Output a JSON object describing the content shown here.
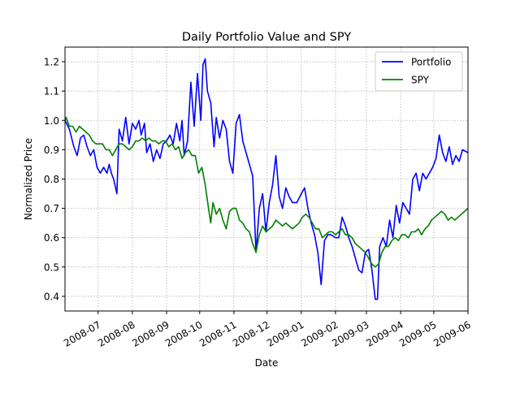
{
  "chart_data": {
    "type": "line",
    "title": "Daily Portfolio Value and SPY",
    "xlabel": "Date",
    "ylabel": "Normalized Price",
    "xlim": [
      "2008-06-01",
      "2009-06-01"
    ],
    "ylim": [
      0.35,
      1.25
    ],
    "grid": true,
    "legend_position": "top-right",
    "x_ticks": [
      "2008-07",
      "2008-08",
      "2008-09",
      "2008-10",
      "2008-11",
      "2008-12",
      "2009-01",
      "2009-02",
      "2009-03",
      "2009-04",
      "2009-05",
      "2009-06"
    ],
    "y_ticks": [
      "0.4",
      "0.5",
      "0.6",
      "0.7",
      "0.8",
      "0.9",
      "1.0",
      "1.1",
      "1.2"
    ],
    "series": [
      {
        "name": "Portfolio",
        "color": "#0000ff",
        "points": [
          [
            "2008-06-01",
            1.0
          ],
          [
            "2008-06-05",
            0.97
          ],
          [
            "2008-06-09",
            0.91
          ],
          [
            "2008-06-12",
            0.88
          ],
          [
            "2008-06-15",
            0.94
          ],
          [
            "2008-06-18",
            0.95
          ],
          [
            "2008-06-21",
            0.91
          ],
          [
            "2008-06-24",
            0.88
          ],
          [
            "2008-06-27",
            0.9
          ],
          [
            "2008-06-30",
            0.84
          ],
          [
            "2008-07-03",
            0.82
          ],
          [
            "2008-07-06",
            0.84
          ],
          [
            "2008-07-09",
            0.82
          ],
          [
            "2008-07-11",
            0.85
          ],
          [
            "2008-07-13",
            0.82
          ],
          [
            "2008-07-15",
            0.8
          ],
          [
            "2008-07-18",
            0.75
          ],
          [
            "2008-07-20",
            0.97
          ],
          [
            "2008-07-23",
            0.93
          ],
          [
            "2008-07-26",
            1.01
          ],
          [
            "2008-07-29",
            0.92
          ],
          [
            "2008-08-01",
            0.99
          ],
          [
            "2008-08-04",
            0.97
          ],
          [
            "2008-08-07",
            1.0
          ],
          [
            "2008-08-09",
            0.95
          ],
          [
            "2008-08-12",
            0.99
          ],
          [
            "2008-08-14",
            0.89
          ],
          [
            "2008-08-17",
            0.92
          ],
          [
            "2008-08-20",
            0.86
          ],
          [
            "2008-08-23",
            0.9
          ],
          [
            "2008-08-26",
            0.87
          ],
          [
            "2008-08-29",
            0.92
          ],
          [
            "2008-09-01",
            0.93
          ],
          [
            "2008-09-04",
            0.95
          ],
          [
            "2008-09-07",
            0.92
          ],
          [
            "2008-09-10",
            0.99
          ],
          [
            "2008-09-13",
            0.93
          ],
          [
            "2008-09-15",
            1.0
          ],
          [
            "2008-09-17",
            0.88
          ],
          [
            "2008-09-20",
            0.93
          ],
          [
            "2008-09-23",
            1.13
          ],
          [
            "2008-09-26",
            0.98
          ],
          [
            "2008-09-29",
            1.16
          ],
          [
            "2008-10-02",
            1.0
          ],
          [
            "2008-10-04",
            1.19
          ],
          [
            "2008-10-06",
            1.21
          ],
          [
            "2008-10-08",
            1.1
          ],
          [
            "2008-10-11",
            1.06
          ],
          [
            "2008-10-14",
            0.91
          ],
          [
            "2008-10-16",
            1.01
          ],
          [
            "2008-10-19",
            0.94
          ],
          [
            "2008-10-22",
            1.0
          ],
          [
            "2008-10-25",
            0.97
          ],
          [
            "2008-10-28",
            0.86
          ],
          [
            "2008-10-31",
            0.82
          ],
          [
            "2008-11-03",
            0.99
          ],
          [
            "2008-11-06",
            1.02
          ],
          [
            "2008-11-09",
            0.93
          ],
          [
            "2008-11-12",
            0.89
          ],
          [
            "2008-11-15",
            0.85
          ],
          [
            "2008-11-18",
            0.81
          ],
          [
            "2008-11-21",
            0.55
          ],
          [
            "2008-11-24",
            0.7
          ],
          [
            "2008-11-27",
            0.75
          ],
          [
            "2008-11-30",
            0.62
          ],
          [
            "2008-12-03",
            0.72
          ],
          [
            "2008-12-06",
            0.78
          ],
          [
            "2008-12-09",
            0.88
          ],
          [
            "2008-12-12",
            0.74
          ],
          [
            "2008-12-15",
            0.7
          ],
          [
            "2008-12-18",
            0.77
          ],
          [
            "2008-12-21",
            0.74
          ],
          [
            "2008-12-24",
            0.72
          ],
          [
            "2008-12-28",
            0.72
          ],
          [
            "2009-01-01",
            0.75
          ],
          [
            "2009-01-04",
            0.77
          ],
          [
            "2009-01-07",
            0.7
          ],
          [
            "2009-01-10",
            0.65
          ],
          [
            "2009-01-13",
            0.61
          ],
          [
            "2009-01-16",
            0.55
          ],
          [
            "2009-01-19",
            0.44
          ],
          [
            "2009-01-22",
            0.59
          ],
          [
            "2009-01-25",
            0.61
          ],
          [
            "2009-01-28",
            0.61
          ],
          [
            "2009-02-01",
            0.6
          ],
          [
            "2009-02-04",
            0.6
          ],
          [
            "2009-02-07",
            0.67
          ],
          [
            "2009-02-10",
            0.64
          ],
          [
            "2009-02-13",
            0.6
          ],
          [
            "2009-02-16",
            0.57
          ],
          [
            "2009-02-19",
            0.53
          ],
          [
            "2009-02-22",
            0.49
          ],
          [
            "2009-02-25",
            0.48
          ],
          [
            "2009-02-28",
            0.55
          ],
          [
            "2009-03-03",
            0.56
          ],
          [
            "2009-03-06",
            0.49
          ],
          [
            "2009-03-09",
            0.39
          ],
          [
            "2009-03-11",
            0.39
          ],
          [
            "2009-03-13",
            0.57
          ],
          [
            "2009-03-16",
            0.6
          ],
          [
            "2009-03-19",
            0.57
          ],
          [
            "2009-03-22",
            0.66
          ],
          [
            "2009-03-25",
            0.6
          ],
          [
            "2009-03-28",
            0.71
          ],
          [
            "2009-03-31",
            0.65
          ],
          [
            "2009-04-03",
            0.72
          ],
          [
            "2009-04-06",
            0.7
          ],
          [
            "2009-04-09",
            0.68
          ],
          [
            "2009-04-12",
            0.8
          ],
          [
            "2009-04-15",
            0.82
          ],
          [
            "2009-04-18",
            0.76
          ],
          [
            "2009-04-21",
            0.82
          ],
          [
            "2009-04-24",
            0.8
          ],
          [
            "2009-04-27",
            0.82
          ],
          [
            "2009-04-30",
            0.84
          ],
          [
            "2009-05-03",
            0.87
          ],
          [
            "2009-05-06",
            0.95
          ],
          [
            "2009-05-09",
            0.89
          ],
          [
            "2009-05-12",
            0.86
          ],
          [
            "2009-05-15",
            0.91
          ],
          [
            "2009-05-18",
            0.85
          ],
          [
            "2009-05-21",
            0.88
          ],
          [
            "2009-05-24",
            0.86
          ],
          [
            "2009-05-27",
            0.9
          ],
          [
            "2009-06-01",
            0.89
          ]
        ]
      },
      {
        "name": "SPY",
        "color": "#008000",
        "points": [
          [
            "2008-06-01",
            1.0
          ],
          [
            "2008-06-02",
            1.01
          ],
          [
            "2008-06-05",
            0.98
          ],
          [
            "2008-06-08",
            0.98
          ],
          [
            "2008-06-11",
            0.96
          ],
          [
            "2008-06-14",
            0.98
          ],
          [
            "2008-06-17",
            0.97
          ],
          [
            "2008-06-20",
            0.96
          ],
          [
            "2008-06-23",
            0.95
          ],
          [
            "2008-06-26",
            0.93
          ],
          [
            "2008-06-29",
            0.92
          ],
          [
            "2008-07-02",
            0.92
          ],
          [
            "2008-07-05",
            0.92
          ],
          [
            "2008-07-08",
            0.9
          ],
          [
            "2008-07-11",
            0.9
          ],
          [
            "2008-07-14",
            0.88
          ],
          [
            "2008-07-17",
            0.9
          ],
          [
            "2008-07-20",
            0.92
          ],
          [
            "2008-07-23",
            0.92
          ],
          [
            "2008-07-26",
            0.91
          ],
          [
            "2008-07-29",
            0.9
          ],
          [
            "2008-08-01",
            0.91
          ],
          [
            "2008-08-04",
            0.93
          ],
          [
            "2008-08-07",
            0.93
          ],
          [
            "2008-08-10",
            0.94
          ],
          [
            "2008-08-13",
            0.93
          ],
          [
            "2008-08-16",
            0.94
          ],
          [
            "2008-08-19",
            0.93
          ],
          [
            "2008-08-22",
            0.93
          ],
          [
            "2008-08-25",
            0.92
          ],
          [
            "2008-08-28",
            0.93
          ],
          [
            "2008-08-31",
            0.93
          ],
          [
            "2008-09-03",
            0.91
          ],
          [
            "2008-09-06",
            0.92
          ],
          [
            "2008-09-09",
            0.9
          ],
          [
            "2008-09-12",
            0.91
          ],
          [
            "2008-09-15",
            0.87
          ],
          [
            "2008-09-18",
            0.89
          ],
          [
            "2008-09-21",
            0.9
          ],
          [
            "2008-09-24",
            0.88
          ],
          [
            "2008-09-27",
            0.88
          ],
          [
            "2008-09-30",
            0.82
          ],
          [
            "2008-10-03",
            0.84
          ],
          [
            "2008-10-06",
            0.78
          ],
          [
            "2008-10-09",
            0.7
          ],
          [
            "2008-10-11",
            0.65
          ],
          [
            "2008-10-13",
            0.72
          ],
          [
            "2008-10-16",
            0.68
          ],
          [
            "2008-10-19",
            0.7
          ],
          [
            "2008-10-22",
            0.66
          ],
          [
            "2008-10-25",
            0.63
          ],
          [
            "2008-10-28",
            0.69
          ],
          [
            "2008-10-31",
            0.7
          ],
          [
            "2008-11-03",
            0.7
          ],
          [
            "2008-11-06",
            0.66
          ],
          [
            "2008-11-09",
            0.65
          ],
          [
            "2008-11-12",
            0.63
          ],
          [
            "2008-11-15",
            0.62
          ],
          [
            "2008-11-18",
            0.58
          ],
          [
            "2008-11-21",
            0.55
          ],
          [
            "2008-11-24",
            0.61
          ],
          [
            "2008-11-27",
            0.64
          ],
          [
            "2008-11-30",
            0.62
          ],
          [
            "2008-12-03",
            0.63
          ],
          [
            "2008-12-06",
            0.64
          ],
          [
            "2008-12-09",
            0.66
          ],
          [
            "2008-12-12",
            0.65
          ],
          [
            "2008-12-15",
            0.64
          ],
          [
            "2008-12-18",
            0.65
          ],
          [
            "2008-12-21",
            0.64
          ],
          [
            "2008-12-24",
            0.63
          ],
          [
            "2008-12-27",
            0.64
          ],
          [
            "2008-12-30",
            0.65
          ],
          [
            "2009-01-02",
            0.67
          ],
          [
            "2009-01-05",
            0.68
          ],
          [
            "2009-01-08",
            0.67
          ],
          [
            "2009-01-11",
            0.65
          ],
          [
            "2009-01-14",
            0.63
          ],
          [
            "2009-01-17",
            0.63
          ],
          [
            "2009-01-20",
            0.6
          ],
          [
            "2009-01-23",
            0.61
          ],
          [
            "2009-01-26",
            0.62
          ],
          [
            "2009-01-29",
            0.62
          ],
          [
            "2009-02-01",
            0.61
          ],
          [
            "2009-02-04",
            0.62
          ],
          [
            "2009-02-07",
            0.63
          ],
          [
            "2009-02-10",
            0.61
          ],
          [
            "2009-02-13",
            0.61
          ],
          [
            "2009-02-16",
            0.6
          ],
          [
            "2009-02-19",
            0.58
          ],
          [
            "2009-02-22",
            0.57
          ],
          [
            "2009-02-25",
            0.56
          ],
          [
            "2009-02-28",
            0.55
          ],
          [
            "2009-03-03",
            0.53
          ],
          [
            "2009-03-06",
            0.51
          ],
          [
            "2009-03-09",
            0.5
          ],
          [
            "2009-03-12",
            0.51
          ],
          [
            "2009-03-15",
            0.55
          ],
          [
            "2009-03-18",
            0.57
          ],
          [
            "2009-03-21",
            0.57
          ],
          [
            "2009-03-24",
            0.59
          ],
          [
            "2009-03-27",
            0.6
          ],
          [
            "2009-03-30",
            0.59
          ],
          [
            "2009-04-02",
            0.61
          ],
          [
            "2009-04-05",
            0.61
          ],
          [
            "2009-04-08",
            0.6
          ],
          [
            "2009-04-11",
            0.62
          ],
          [
            "2009-04-14",
            0.62
          ],
          [
            "2009-04-17",
            0.63
          ],
          [
            "2009-04-20",
            0.61
          ],
          [
            "2009-04-23",
            0.63
          ],
          [
            "2009-04-26",
            0.64
          ],
          [
            "2009-04-29",
            0.66
          ],
          [
            "2009-05-02",
            0.67
          ],
          [
            "2009-05-05",
            0.68
          ],
          [
            "2009-05-08",
            0.69
          ],
          [
            "2009-05-11",
            0.68
          ],
          [
            "2009-05-14",
            0.66
          ],
          [
            "2009-05-17",
            0.67
          ],
          [
            "2009-05-20",
            0.66
          ],
          [
            "2009-05-23",
            0.67
          ],
          [
            "2009-05-26",
            0.68
          ],
          [
            "2009-05-29",
            0.69
          ],
          [
            "2009-06-01",
            0.7
          ]
        ]
      }
    ]
  }
}
